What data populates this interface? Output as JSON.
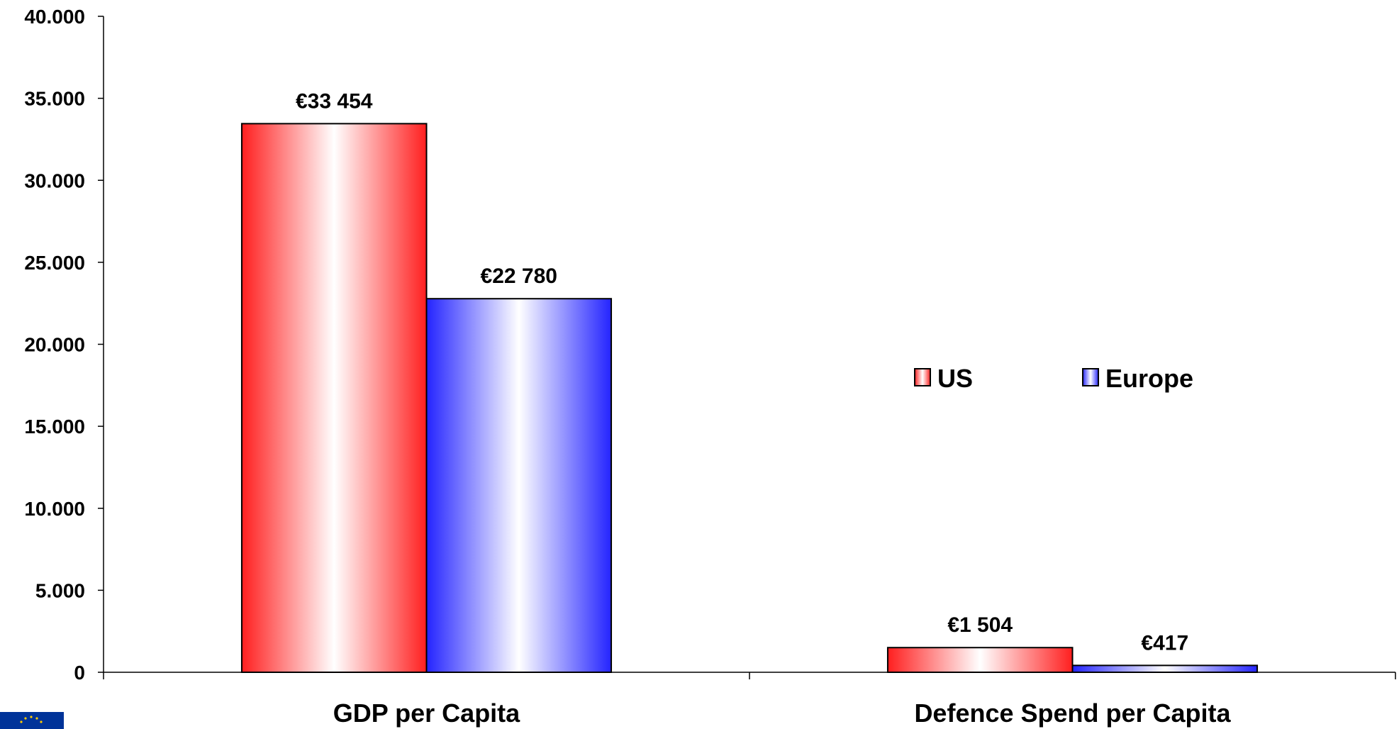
{
  "chart_data": {
    "type": "bar",
    "categories": [
      "GDP per  Capita",
      "Defence Spend per Capita"
    ],
    "series": [
      {
        "name": "US",
        "values": [
          33454,
          1504
        ],
        "labels": [
          "€33 454",
          "€1 504"
        ]
      },
      {
        "name": "Europe",
        "values": [
          22780,
          417
        ],
        "labels": [
          "€22 780",
          "€417"
        ]
      }
    ],
    "y_ticks": [
      "0",
      "5.000",
      "10.000",
      "15.000",
      "20.000",
      "25.000",
      "30.000",
      "35.000",
      "40.000"
    ],
    "ylim": [
      0,
      40000
    ],
    "title": "",
    "xlabel": "",
    "ylabel": "",
    "grid": false,
    "legend_position": "right-center",
    "colors": {
      "US": "#ff2020",
      "Europe": "#3030ff"
    }
  },
  "logo": {
    "name": "eu-flag-logo"
  }
}
